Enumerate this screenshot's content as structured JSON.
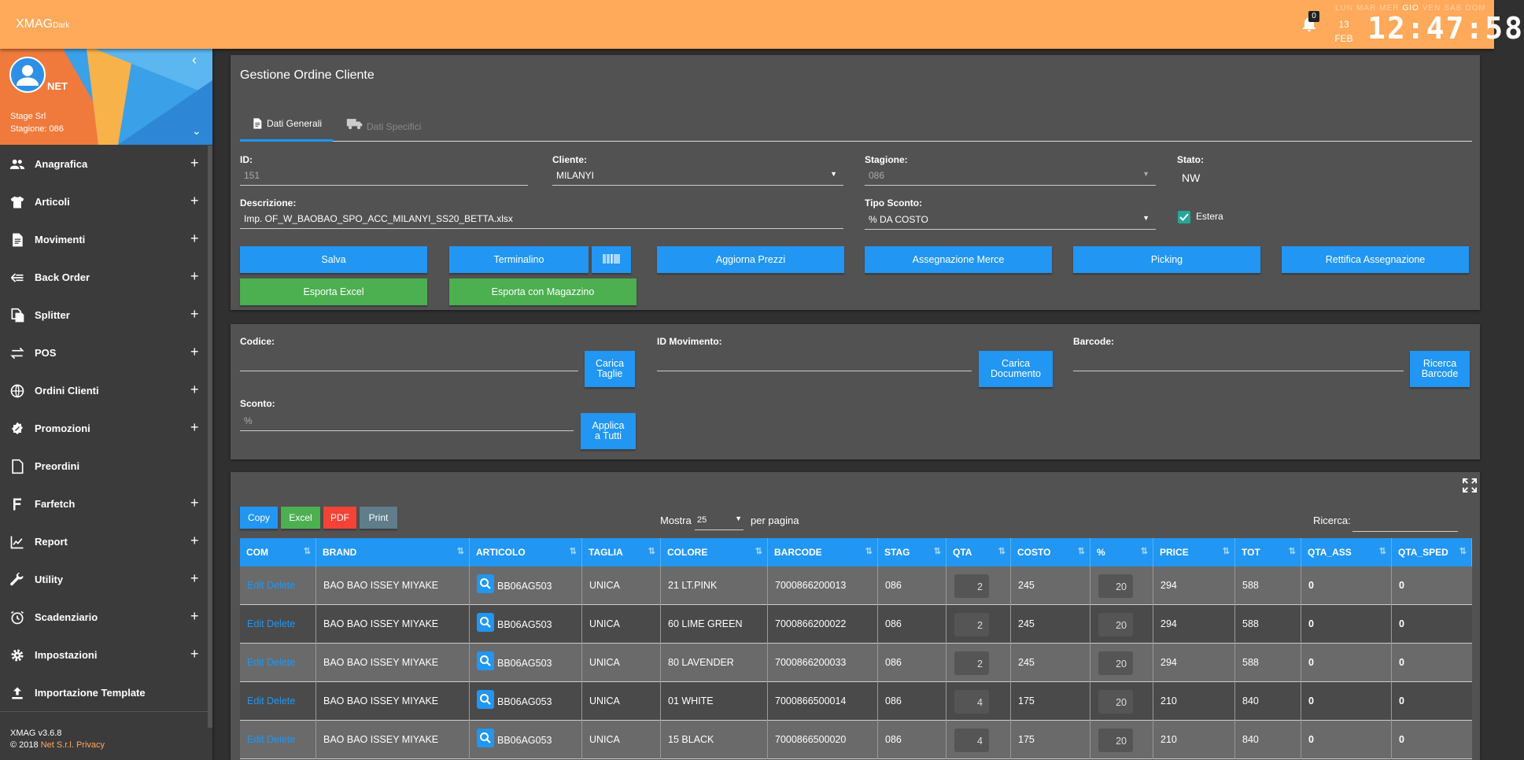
{
  "topbar": {
    "brand": "XMAG",
    "brand_sub": "Dark",
    "notifications": "0",
    "days": [
      "LUN",
      "MAR",
      "MER",
      "GIO",
      "VEN",
      "SAB",
      "DOM"
    ],
    "active_day": "GIO",
    "day": "13",
    "month": "FEB",
    "clock": "12:47:58"
  },
  "sidebar": {
    "user": "NET",
    "company": "Stage Srl",
    "season": "Stagione: 086",
    "items": [
      {
        "label": "Anagrafica",
        "plus": "+"
      },
      {
        "label": "Articoli",
        "plus": "+"
      },
      {
        "label": "Movimenti",
        "plus": "+"
      },
      {
        "label": "Back Order",
        "plus": "+"
      },
      {
        "label": "Splitter",
        "plus": "+"
      },
      {
        "label": "POS",
        "plus": "+"
      },
      {
        "label": "Ordini Clienti",
        "plus": "+"
      },
      {
        "label": "Promozioni",
        "plus": "+"
      },
      {
        "label": "Preordini",
        "plus": ""
      },
      {
        "label": "Farfetch",
        "plus": "+"
      },
      {
        "label": "Report",
        "plus": "+"
      },
      {
        "label": "Utility",
        "plus": "+"
      },
      {
        "label": "Scadenziario",
        "plus": "+"
      },
      {
        "label": "Impostazioni",
        "plus": "+"
      },
      {
        "label": "Importazione Template",
        "plus": ""
      }
    ],
    "version": "XMAG v3.6.8",
    "copyright": "© 2018",
    "copyright_link": "Net S.r.l.",
    "privacy": "Privacy"
  },
  "form": {
    "title": "Gestione Ordine Cliente",
    "tabs": [
      "Dati Generali",
      "Dati Specifici"
    ],
    "id_label": "ID:",
    "id_value": "151",
    "cliente_label": "Cliente:",
    "cliente_value": "MILANYI",
    "stagione_label": "Stagione:",
    "stagione_value": "086",
    "stato_label": "Stato:",
    "stato_value": "NW",
    "descrizione_label": "Descrizione:",
    "descrizione_value": "Imp. OF_W_BAOBAO_SPO_ACC_MILANYI_SS20_BETTA.xlsx",
    "tipo_sconto_label": "Tipo Sconto:",
    "tipo_sconto_value": "% DA COSTO",
    "estera_label": "Estera",
    "buttons": {
      "salva": "Salva",
      "terminalino": "Terminalino",
      "aggiorna_prezzi": "Aggiorna Prezzi",
      "assegnazione_merce": "Assegnazione Merce",
      "picking": "Picking",
      "rettifica": "Rettifica Assegnazione",
      "esporta_excel": "Esporta Excel",
      "esporta_magazzino": "Esporta con Magazzino"
    }
  },
  "loader": {
    "codice_label": "Codice:",
    "carica_taglie_1": "Carica",
    "carica_taglie_2": "Taglie",
    "id_movimento_label": "ID Movimento:",
    "carica_doc_1": "Carica",
    "carica_doc_2": "Documento",
    "barcode_label": "Barcode:",
    "ricerca_1": "Ricerca",
    "ricerca_2": "Barcode",
    "sconto_label": "Sconto:",
    "sconto_placeholder": "%",
    "applica_1": "Applica",
    "applica_2": "a Tutti"
  },
  "table": {
    "export_buttons": [
      "Copy",
      "Excel",
      "PDF",
      "Print"
    ],
    "mostra": "Mostra",
    "page_size": "25",
    "per_pagina": "per pagina",
    "ricerca": "Ricerca:",
    "columns": [
      "COM",
      "BRAND",
      "ARTICOLO",
      "TAGLIA",
      "COLORE",
      "BARCODE",
      "STAG",
      "QTA",
      "COSTO",
      "%",
      "PRICE",
      "TOT",
      "QTA_ASS",
      "QTA_SPED"
    ],
    "edit": "Edit",
    "delete": "Delete",
    "rows": [
      {
        "brand": "BAO BAO ISSEY MIYAKE",
        "articolo": "BB06AG503",
        "taglia": "UNICA",
        "colore": "21 LT.PINK",
        "barcode": "7000866200013",
        "stag": "086",
        "qta": "2",
        "costo": "245",
        "perc": "20",
        "price": "294",
        "tot": "588",
        "qta_ass": "0",
        "qta_sped": "0"
      },
      {
        "brand": "BAO BAO ISSEY MIYAKE",
        "articolo": "BB06AG503",
        "taglia": "UNICA",
        "colore": "60 LIME GREEN",
        "barcode": "7000866200022",
        "stag": "086",
        "qta": "2",
        "costo": "245",
        "perc": "20",
        "price": "294",
        "tot": "588",
        "qta_ass": "0",
        "qta_sped": "0"
      },
      {
        "brand": "BAO BAO ISSEY MIYAKE",
        "articolo": "BB06AG503",
        "taglia": "UNICA",
        "colore": "80 LAVENDER",
        "barcode": "7000866200033",
        "stag": "086",
        "qta": "2",
        "costo": "245",
        "perc": "20",
        "price": "294",
        "tot": "588",
        "qta_ass": "0",
        "qta_sped": "0"
      },
      {
        "brand": "BAO BAO ISSEY MIYAKE",
        "articolo": "BB06AG053",
        "taglia": "UNICA",
        "colore": "01 WHITE",
        "barcode": "7000866500014",
        "stag": "086",
        "qta": "4",
        "costo": "175",
        "perc": "20",
        "price": "210",
        "tot": "840",
        "qta_ass": "0",
        "qta_sped": "0"
      },
      {
        "brand": "BAO BAO ISSEY MIYAKE",
        "articolo": "BB06AG053",
        "taglia": "UNICA",
        "colore": "15 BLACK",
        "barcode": "7000866500020",
        "stag": "086",
        "qta": "4",
        "costo": "175",
        "perc": "20",
        "price": "210",
        "tot": "840",
        "qta_ass": "0",
        "qta_sped": "0"
      }
    ]
  },
  "colors": {
    "topbar": "#ffa95a",
    "primary": "#2196f3",
    "success": "#4caf50",
    "danger": "#f44336",
    "teal": "#26a69a"
  }
}
